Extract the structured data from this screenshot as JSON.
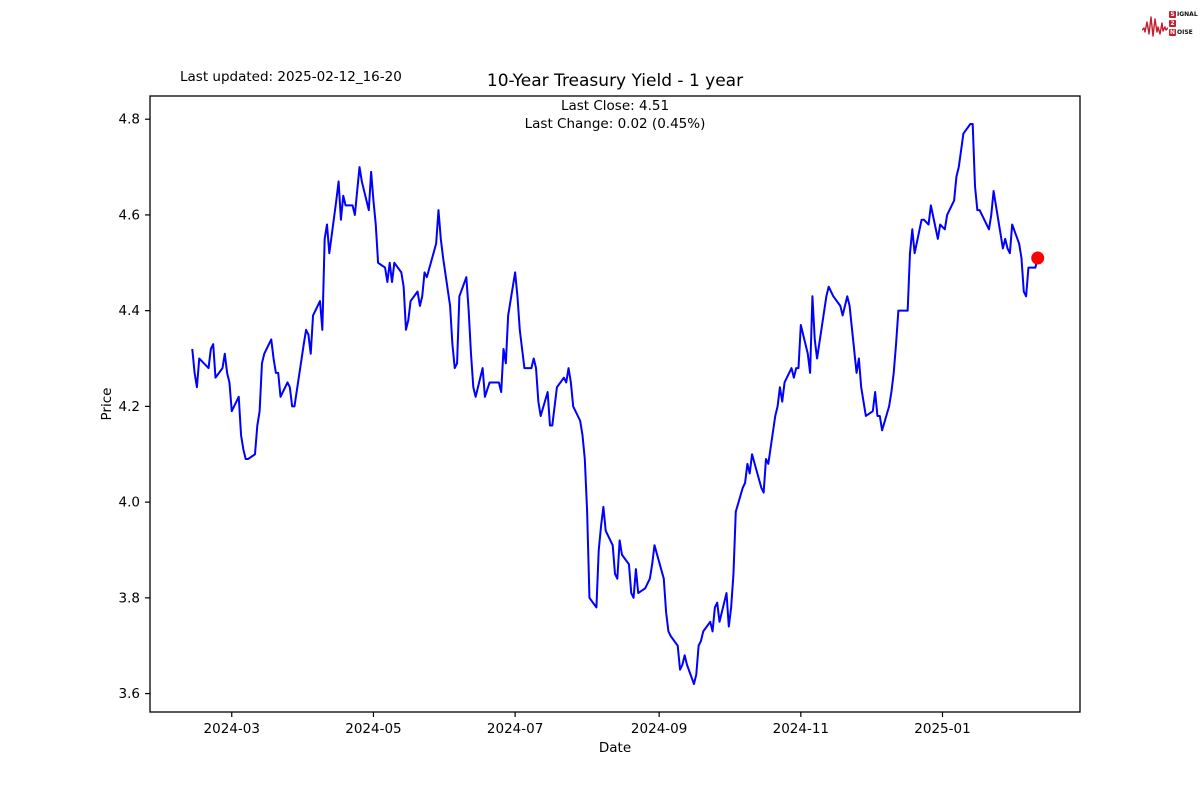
{
  "header": {
    "last_updated": "Last updated: 2025-02-12_16-20",
    "title": "10-Year Treasury Yield - 1 year",
    "subtitle_line1": "Last Close: 4.51",
    "subtitle_line2": "Last Change: 0.02 (0.45%)"
  },
  "logo": {
    "color": "#c41e2f",
    "rows": [
      {
        "badge": "S",
        "text": "IGNAL"
      },
      {
        "badge": "2",
        "text": ""
      },
      {
        "badge": "N",
        "text": "OISE"
      }
    ]
  },
  "chart_data": {
    "type": "line",
    "title": "10-Year Treasury Yield - 1 year",
    "subtitle": [
      "Last Close: 4.51",
      "Last Change: 0.02 (0.45%)"
    ],
    "xlabel": "Date",
    "ylabel": "Price",
    "x_tick_labels": [
      "2024-03",
      "2024-05",
      "2024-07",
      "2024-09",
      "2024-11",
      "2025-01"
    ],
    "y_tick_labels": [
      "3.6",
      "3.8",
      "4.0",
      "4.2",
      "4.4",
      "4.6",
      "4.8"
    ],
    "ylim": [
      3.56,
      4.85
    ],
    "grid": false,
    "legend": "none",
    "line_color": "#0000ff",
    "marker_color": "#ff0000",
    "last_close": 4.51,
    "last_change": 0.02,
    "last_change_pct": 0.45,
    "series": [
      {
        "name": "10-Year Treasury Yield",
        "dates": [
          "2024-02-13",
          "2024-02-14",
          "2024-02-15",
          "2024-02-16",
          "2024-02-20",
          "2024-02-21",
          "2024-02-22",
          "2024-02-23",
          "2024-02-26",
          "2024-02-27",
          "2024-02-28",
          "2024-02-29",
          "2024-03-01",
          "2024-03-04",
          "2024-03-05",
          "2024-03-06",
          "2024-03-07",
          "2024-03-08",
          "2024-03-11",
          "2024-03-12",
          "2024-03-13",
          "2024-03-14",
          "2024-03-15",
          "2024-03-18",
          "2024-03-19",
          "2024-03-20",
          "2024-03-21",
          "2024-03-22",
          "2024-03-25",
          "2024-03-26",
          "2024-03-27",
          "2024-03-28",
          "2024-04-01",
          "2024-04-02",
          "2024-04-03",
          "2024-04-04",
          "2024-04-05",
          "2024-04-08",
          "2024-04-09",
          "2024-04-10",
          "2024-04-11",
          "2024-04-12",
          "2024-04-15",
          "2024-04-16",
          "2024-04-17",
          "2024-04-18",
          "2024-04-19",
          "2024-04-22",
          "2024-04-23",
          "2024-04-24",
          "2024-04-25",
          "2024-04-26",
          "2024-04-29",
          "2024-04-30",
          "2024-05-01",
          "2024-05-02",
          "2024-05-03",
          "2024-05-06",
          "2024-05-07",
          "2024-05-08",
          "2024-05-09",
          "2024-05-10",
          "2024-05-13",
          "2024-05-14",
          "2024-05-15",
          "2024-05-16",
          "2024-05-17",
          "2024-05-20",
          "2024-05-21",
          "2024-05-22",
          "2024-05-23",
          "2024-05-24",
          "2024-05-28",
          "2024-05-29",
          "2024-05-30",
          "2024-05-31",
          "2024-06-03",
          "2024-06-04",
          "2024-06-05",
          "2024-06-06",
          "2024-06-07",
          "2024-06-10",
          "2024-06-11",
          "2024-06-12",
          "2024-06-13",
          "2024-06-14",
          "2024-06-17",
          "2024-06-18",
          "2024-06-20",
          "2024-06-21",
          "2024-06-24",
          "2024-06-25",
          "2024-06-26",
          "2024-06-27",
          "2024-06-28",
          "2024-07-01",
          "2024-07-02",
          "2024-07-03",
          "2024-07-05",
          "2024-07-08",
          "2024-07-09",
          "2024-07-10",
          "2024-07-11",
          "2024-07-12",
          "2024-07-15",
          "2024-07-16",
          "2024-07-17",
          "2024-07-18",
          "2024-07-19",
          "2024-07-22",
          "2024-07-23",
          "2024-07-24",
          "2024-07-25",
          "2024-07-26",
          "2024-07-29",
          "2024-07-30",
          "2024-07-31",
          "2024-08-01",
          "2024-08-02",
          "2024-08-05",
          "2024-08-06",
          "2024-08-07",
          "2024-08-08",
          "2024-08-09",
          "2024-08-12",
          "2024-08-13",
          "2024-08-14",
          "2024-08-15",
          "2024-08-16",
          "2024-08-19",
          "2024-08-20",
          "2024-08-21",
          "2024-08-22",
          "2024-08-23",
          "2024-08-26",
          "2024-08-27",
          "2024-08-28",
          "2024-08-29",
          "2024-08-30",
          "2024-09-03",
          "2024-09-04",
          "2024-09-05",
          "2024-09-06",
          "2024-09-09",
          "2024-09-10",
          "2024-09-11",
          "2024-09-12",
          "2024-09-13",
          "2024-09-16",
          "2024-09-17",
          "2024-09-18",
          "2024-09-19",
          "2024-09-20",
          "2024-09-23",
          "2024-09-24",
          "2024-09-25",
          "2024-09-26",
          "2024-09-27",
          "2024-09-30",
          "2024-10-01",
          "2024-10-02",
          "2024-10-03",
          "2024-10-04",
          "2024-10-07",
          "2024-10-08",
          "2024-10-09",
          "2024-10-10",
          "2024-10-11",
          "2024-10-15",
          "2024-10-16",
          "2024-10-17",
          "2024-10-18",
          "2024-10-21",
          "2024-10-22",
          "2024-10-23",
          "2024-10-24",
          "2024-10-25",
          "2024-10-28",
          "2024-10-29",
          "2024-10-30",
          "2024-10-31",
          "2024-11-01",
          "2024-11-04",
          "2024-11-05",
          "2024-11-06",
          "2024-11-07",
          "2024-11-08",
          "2024-11-12",
          "2024-11-13",
          "2024-11-14",
          "2024-11-15",
          "2024-11-18",
          "2024-11-19",
          "2024-11-20",
          "2024-11-21",
          "2024-11-22",
          "2024-11-25",
          "2024-11-26",
          "2024-11-27",
          "2024-11-29",
          "2024-12-02",
          "2024-12-03",
          "2024-12-04",
          "2024-12-05",
          "2024-12-06",
          "2024-12-09",
          "2024-12-10",
          "2024-12-11",
          "2024-12-12",
          "2024-12-13",
          "2024-12-16",
          "2024-12-17",
          "2024-12-18",
          "2024-12-19",
          "2024-12-20",
          "2024-12-23",
          "2024-12-24",
          "2024-12-26",
          "2024-12-27",
          "2024-12-30",
          "2024-12-31",
          "2025-01-02",
          "2025-01-03",
          "2025-01-06",
          "2025-01-07",
          "2025-01-08",
          "2025-01-10",
          "2025-01-13",
          "2025-01-14",
          "2025-01-15",
          "2025-01-16",
          "2025-01-17",
          "2025-01-21",
          "2025-01-22",
          "2025-01-23",
          "2025-01-24",
          "2025-01-27",
          "2025-01-28",
          "2025-01-29",
          "2025-01-30",
          "2025-01-31",
          "2025-02-03",
          "2025-02-04",
          "2025-02-05",
          "2025-02-06",
          "2025-02-07",
          "2025-02-10",
          "2025-02-11"
        ],
        "values": [
          4.32,
          4.27,
          4.24,
          4.3,
          4.28,
          4.32,
          4.33,
          4.26,
          4.28,
          4.31,
          4.27,
          4.25,
          4.19,
          4.22,
          4.14,
          4.11,
          4.09,
          4.09,
          4.1,
          4.16,
          4.19,
          4.29,
          4.31,
          4.34,
          4.3,
          4.27,
          4.27,
          4.22,
          4.25,
          4.24,
          4.2,
          4.2,
          4.33,
          4.36,
          4.35,
          4.31,
          4.39,
          4.42,
          4.36,
          4.55,
          4.58,
          4.52,
          4.63,
          4.67,
          4.59,
          4.64,
          4.62,
          4.62,
          4.6,
          4.65,
          4.7,
          4.67,
          4.61,
          4.69,
          4.63,
          4.58,
          4.5,
          4.49,
          4.46,
          4.5,
          4.46,
          4.5,
          4.48,
          4.45,
          4.36,
          4.38,
          4.42,
          4.44,
          4.41,
          4.43,
          4.48,
          4.47,
          4.54,
          4.61,
          4.55,
          4.51,
          4.41,
          4.33,
          4.28,
          4.29,
          4.43,
          4.47,
          4.4,
          4.31,
          4.24,
          4.22,
          4.28,
          4.22,
          4.25,
          4.25,
          4.25,
          4.23,
          4.32,
          4.29,
          4.39,
          4.48,
          4.43,
          4.36,
          4.28,
          4.28,
          4.3,
          4.28,
          4.21,
          4.18,
          4.23,
          4.16,
          4.16,
          4.2,
          4.24,
          4.26,
          4.25,
          4.28,
          4.25,
          4.2,
          4.17,
          4.14,
          4.09,
          3.98,
          3.8,
          3.78,
          3.9,
          3.95,
          3.99,
          3.94,
          3.91,
          3.85,
          3.84,
          3.92,
          3.89,
          3.87,
          3.81,
          3.8,
          3.86,
          3.81,
          3.82,
          3.83,
          3.84,
          3.87,
          3.91,
          3.84,
          3.77,
          3.73,
          3.72,
          3.7,
          3.65,
          3.66,
          3.68,
          3.66,
          3.62,
          3.64,
          3.7,
          3.71,
          3.73,
          3.75,
          3.73,
          3.78,
          3.79,
          3.75,
          3.81,
          3.74,
          3.78,
          3.85,
          3.98,
          4.03,
          4.04,
          4.08,
          4.06,
          4.1,
          4.03,
          4.02,
          4.09,
          4.08,
          4.18,
          4.2,
          4.24,
          4.21,
          4.25,
          4.28,
          4.26,
          4.28,
          4.28,
          4.37,
          4.31,
          4.27,
          4.43,
          4.34,
          4.3,
          4.43,
          4.45,
          4.44,
          4.43,
          4.41,
          4.39,
          4.41,
          4.43,
          4.41,
          4.27,
          4.3,
          4.24,
          4.18,
          4.19,
          4.23,
          4.18,
          4.18,
          4.15,
          4.2,
          4.23,
          4.27,
          4.33,
          4.4,
          4.4,
          4.4,
          4.52,
          4.57,
          4.52,
          4.59,
          4.59,
          4.58,
          4.62,
          4.55,
          4.58,
          4.57,
          4.6,
          4.63,
          4.68,
          4.7,
          4.77,
          4.79,
          4.79,
          4.66,
          4.61,
          4.61,
          4.57,
          4.6,
          4.65,
          4.62,
          4.53,
          4.55,
          4.53,
          4.52,
          4.58,
          4.54,
          4.51,
          4.44,
          4.43,
          4.49,
          4.49,
          4.51
        ]
      }
    ]
  }
}
